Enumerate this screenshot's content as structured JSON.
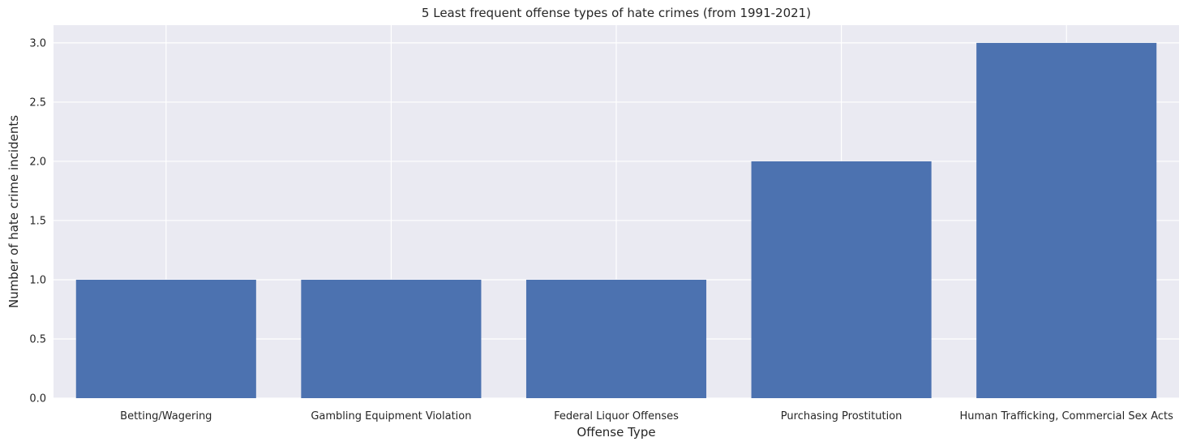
{
  "chart_data": {
    "type": "bar",
    "title": "5 Least frequent offense types of hate crimes (from 1991-2021)",
    "xlabel": "Offense Type",
    "ylabel": "Number of hate crime incidents",
    "categories": [
      "Betting/Wagering",
      "Gambling Equipment Violation",
      "Federal Liquor Offenses",
      "Purchasing Prostitution",
      "Human Trafficking, Commercial Sex Acts"
    ],
    "values": [
      1,
      1,
      1,
      2,
      3
    ],
    "ylim": [
      0,
      3.15
    ],
    "yticks": [
      "0.0",
      "0.5",
      "1.0",
      "1.5",
      "2.0",
      "2.5",
      "3.0"
    ],
    "grid": true,
    "legend": "none",
    "colors": {
      "bar": "#4c72b0",
      "plot_background": "#eaeaf2",
      "grid": "#ffffff",
      "text": "#262626"
    }
  }
}
